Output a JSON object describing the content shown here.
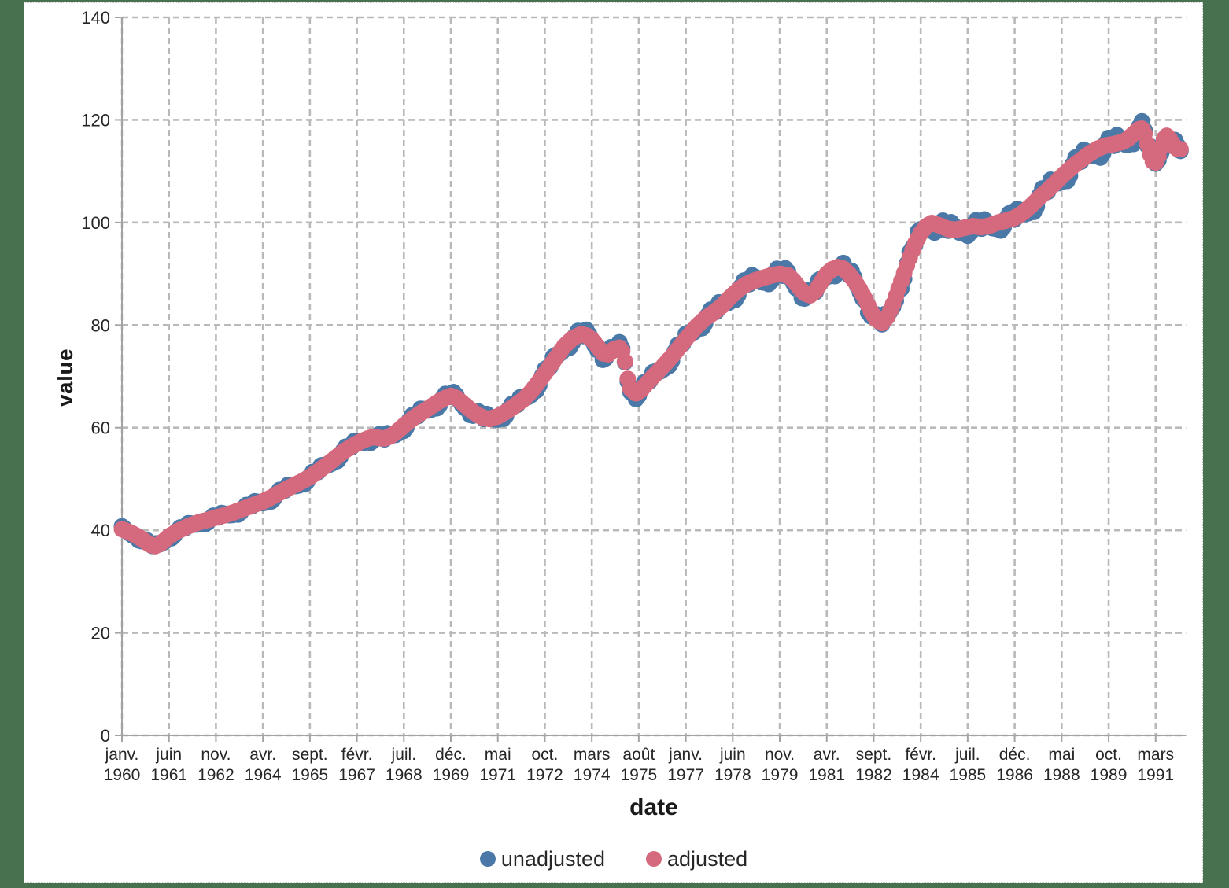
{
  "axes": {
    "x_title": "date",
    "y_title": "value"
  },
  "legend": {
    "items": [
      {
        "label": "unadjusted",
        "color": "#4a79a8"
      },
      {
        "label": "adjusted",
        "color": "#d5697d"
      }
    ]
  },
  "theme": {
    "background": "#487150",
    "panel": "#ffffff",
    "grid": "#b9b9b9",
    "axis": "#a3a3a3",
    "tick_text": "#262626"
  },
  "chart_data": {
    "type": "scatter",
    "title": "",
    "xlabel": "date",
    "ylabel": "value",
    "ylim": [
      0,
      140
    ],
    "y_ticks": [
      0,
      20,
      40,
      60,
      80,
      100,
      120,
      140
    ],
    "grid": "dashed",
    "legend_position": "bottom-center",
    "x_unit": "month index from janv. 1960",
    "x_range_months": [
      0,
      383
    ],
    "x_ticks": [
      {
        "m": 0,
        "month": "janv.",
        "year": "1960"
      },
      {
        "m": 17,
        "month": "juin",
        "year": "1961"
      },
      {
        "m": 34,
        "month": "nov.",
        "year": "1962"
      },
      {
        "m": 51,
        "month": "avr.",
        "year": "1964"
      },
      {
        "m": 68,
        "month": "sept.",
        "year": "1965"
      },
      {
        "m": 85,
        "month": "févr.",
        "year": "1967"
      },
      {
        "m": 102,
        "month": "juil.",
        "year": "1968"
      },
      {
        "m": 119,
        "month": "déc.",
        "year": "1969"
      },
      {
        "m": 136,
        "month": "mai",
        "year": "1971"
      },
      {
        "m": 153,
        "month": "oct.",
        "year": "1972"
      },
      {
        "m": 170,
        "month": "mars",
        "year": "1974"
      },
      {
        "m": 187,
        "month": "août",
        "year": "1975"
      },
      {
        "m": 204,
        "month": "janv.",
        "year": "1977"
      },
      {
        "m": 221,
        "month": "juin",
        "year": "1978"
      },
      {
        "m": 238,
        "month": "nov.",
        "year": "1979"
      },
      {
        "m": 255,
        "month": "avr.",
        "year": "1981"
      },
      {
        "m": 272,
        "month": "sept.",
        "year": "1982"
      },
      {
        "m": 289,
        "month": "févr.",
        "year": "1984"
      },
      {
        "m": 306,
        "month": "juil.",
        "year": "1985"
      },
      {
        "m": 323,
        "month": "déc.",
        "year": "1986"
      },
      {
        "m": 340,
        "month": "mai",
        "year": "1988"
      },
      {
        "m": 357,
        "month": "oct.",
        "year": "1989"
      },
      {
        "m": 374,
        "month": "mars",
        "year": "1991"
      }
    ],
    "series": [
      {
        "name": "unadjusted",
        "color": "#4a79a8",
        "derivation": "adjusted value plus monthly seasonal offset scaled by level/100"
      },
      {
        "name": "adjusted",
        "color": "#d5697d",
        "sampling": "monthly points linearly interpolated between anchors [month_index, value]",
        "anchors": [
          [
            0,
            40.2
          ],
          [
            2,
            39.8
          ],
          [
            4,
            39.3
          ],
          [
            6,
            38.7
          ],
          [
            8,
            38.0
          ],
          [
            10,
            37.2
          ],
          [
            12,
            36.9
          ],
          [
            14,
            37.4
          ],
          [
            17,
            38.8
          ],
          [
            20,
            39.8
          ],
          [
            24,
            40.8
          ],
          [
            28,
            41.6
          ],
          [
            31,
            42.0
          ],
          [
            34,
            42.5
          ],
          [
            37,
            42.9
          ],
          [
            40,
            43.4
          ],
          [
            45,
            44.4
          ],
          [
            48,
            45.0
          ],
          [
            51,
            45.6
          ],
          [
            54,
            46.4
          ],
          [
            58,
            47.6
          ],
          [
            62,
            48.7
          ],
          [
            65,
            49.5
          ],
          [
            68,
            50.4
          ],
          [
            71,
            51.5
          ],
          [
            74,
            52.7
          ],
          [
            77,
            54.0
          ],
          [
            80,
            55.3
          ],
          [
            83,
            56.3
          ],
          [
            86,
            57.2
          ],
          [
            89,
            57.9
          ],
          [
            91,
            58.2
          ],
          [
            93,
            58.0
          ],
          [
            95,
            57.9
          ],
          [
            97,
            58.3
          ],
          [
            99,
            59.0
          ],
          [
            102,
            60.4
          ],
          [
            105,
            61.7
          ],
          [
            108,
            62.8
          ],
          [
            111,
            63.8
          ],
          [
            114,
            64.9
          ],
          [
            117,
            65.8
          ],
          [
            119,
            66.2
          ],
          [
            121,
            65.8
          ],
          [
            123,
            64.9
          ],
          [
            125,
            64.0
          ],
          [
            127,
            63.1
          ],
          [
            129,
            62.4
          ],
          [
            131,
            61.9
          ],
          [
            133,
            61.7
          ],
          [
            136,
            62.2
          ],
          [
            139,
            63.1
          ],
          [
            142,
            64.2
          ],
          [
            145,
            65.4
          ],
          [
            148,
            67.0
          ],
          [
            151,
            69.1
          ],
          [
            154,
            71.3
          ],
          [
            157,
            73.6
          ],
          [
            160,
            75.9
          ],
          [
            163,
            77.4
          ],
          [
            166,
            78.2
          ],
          [
            168,
            78.0
          ],
          [
            170,
            77.2
          ],
          [
            172,
            75.9
          ],
          [
            174,
            74.5
          ],
          [
            176,
            74.3
          ],
          [
            178,
            75.3
          ],
          [
            180,
            75.6
          ],
          [
            181,
            74.9
          ],
          [
            182,
            72.9
          ],
          [
            183,
            69.5
          ],
          [
            184,
            67.6
          ],
          [
            186,
            66.7
          ],
          [
            188,
            67.4
          ],
          [
            190,
            68.7
          ],
          [
            193,
            70.4
          ],
          [
            196,
            72.1
          ],
          [
            199,
            73.9
          ],
          [
            202,
            75.9
          ],
          [
            205,
            77.9
          ],
          [
            208,
            79.8
          ],
          [
            211,
            81.3
          ],
          [
            214,
            82.4
          ],
          [
            217,
            83.7
          ],
          [
            220,
            85.4
          ],
          [
            223,
            86.9
          ],
          [
            226,
            88.0
          ],
          [
            229,
            88.7
          ],
          [
            232,
            89.2
          ],
          [
            235,
            89.7
          ],
          [
            238,
            90.0
          ],
          [
            241,
            89.7
          ],
          [
            243,
            88.7
          ],
          [
            245,
            87.3
          ],
          [
            247,
            86.2
          ],
          [
            249,
            85.8
          ],
          [
            251,
            86.7
          ],
          [
            253,
            88.4
          ],
          [
            255,
            90.0
          ],
          [
            257,
            90.9
          ],
          [
            259,
            91.3
          ],
          [
            261,
            91.0
          ],
          [
            263,
            90.0
          ],
          [
            265,
            88.6
          ],
          [
            267,
            87.0
          ],
          [
            269,
            85.0
          ],
          [
            271,
            82.7
          ],
          [
            273,
            81.1
          ],
          [
            275,
            80.4
          ],
          [
            277,
            81.6
          ],
          [
            279,
            84.1
          ],
          [
            281,
            87.1
          ],
          [
            283,
            90.1
          ],
          [
            285,
            93.1
          ],
          [
            287,
            95.9
          ],
          [
            289,
            97.9
          ],
          [
            291,
            99.3
          ],
          [
            293,
            99.9
          ],
          [
            296,
            99.4
          ],
          [
            299,
            98.7
          ],
          [
            302,
            98.6
          ],
          [
            305,
            99.0
          ],
          [
            308,
            99.3
          ],
          [
            311,
            99.1
          ],
          [
            314,
            99.4
          ],
          [
            317,
            100.0
          ],
          [
            320,
            100.4
          ],
          [
            323,
            100.9
          ],
          [
            326,
            101.9
          ],
          [
            329,
            103.3
          ],
          [
            332,
            104.9
          ],
          [
            335,
            106.3
          ],
          [
            338,
            107.9
          ],
          [
            341,
            109.5
          ],
          [
            344,
            110.9
          ],
          [
            347,
            112.2
          ],
          [
            350,
            113.4
          ],
          [
            353,
            114.4
          ],
          [
            356,
            115.0
          ],
          [
            359,
            115.3
          ],
          [
            362,
            115.7
          ],
          [
            364,
            116.3
          ],
          [
            366,
            117.3
          ],
          [
            368,
            118.2
          ],
          [
            369,
            118.3
          ],
          [
            370,
            117.3
          ],
          [
            371,
            115.3
          ],
          [
            372,
            113.3
          ],
          [
            373,
            111.9
          ],
          [
            374,
            111.7
          ],
          [
            375,
            112.9
          ],
          [
            376,
            114.7
          ],
          [
            377,
            116.3
          ],
          [
            378,
            116.9
          ],
          [
            379,
            116.4
          ],
          [
            380,
            115.5
          ],
          [
            381,
            114.7
          ],
          [
            382,
            114.3
          ],
          [
            383,
            114.3
          ]
        ]
      }
    ],
    "seasonal_offsets_by_month": [
      1.4,
      0.8,
      -0.2,
      -0.7,
      -1.0,
      -0.4,
      -1.7,
      -1.2,
      0.4,
      1.2,
      0.6,
      -0.3
    ]
  }
}
